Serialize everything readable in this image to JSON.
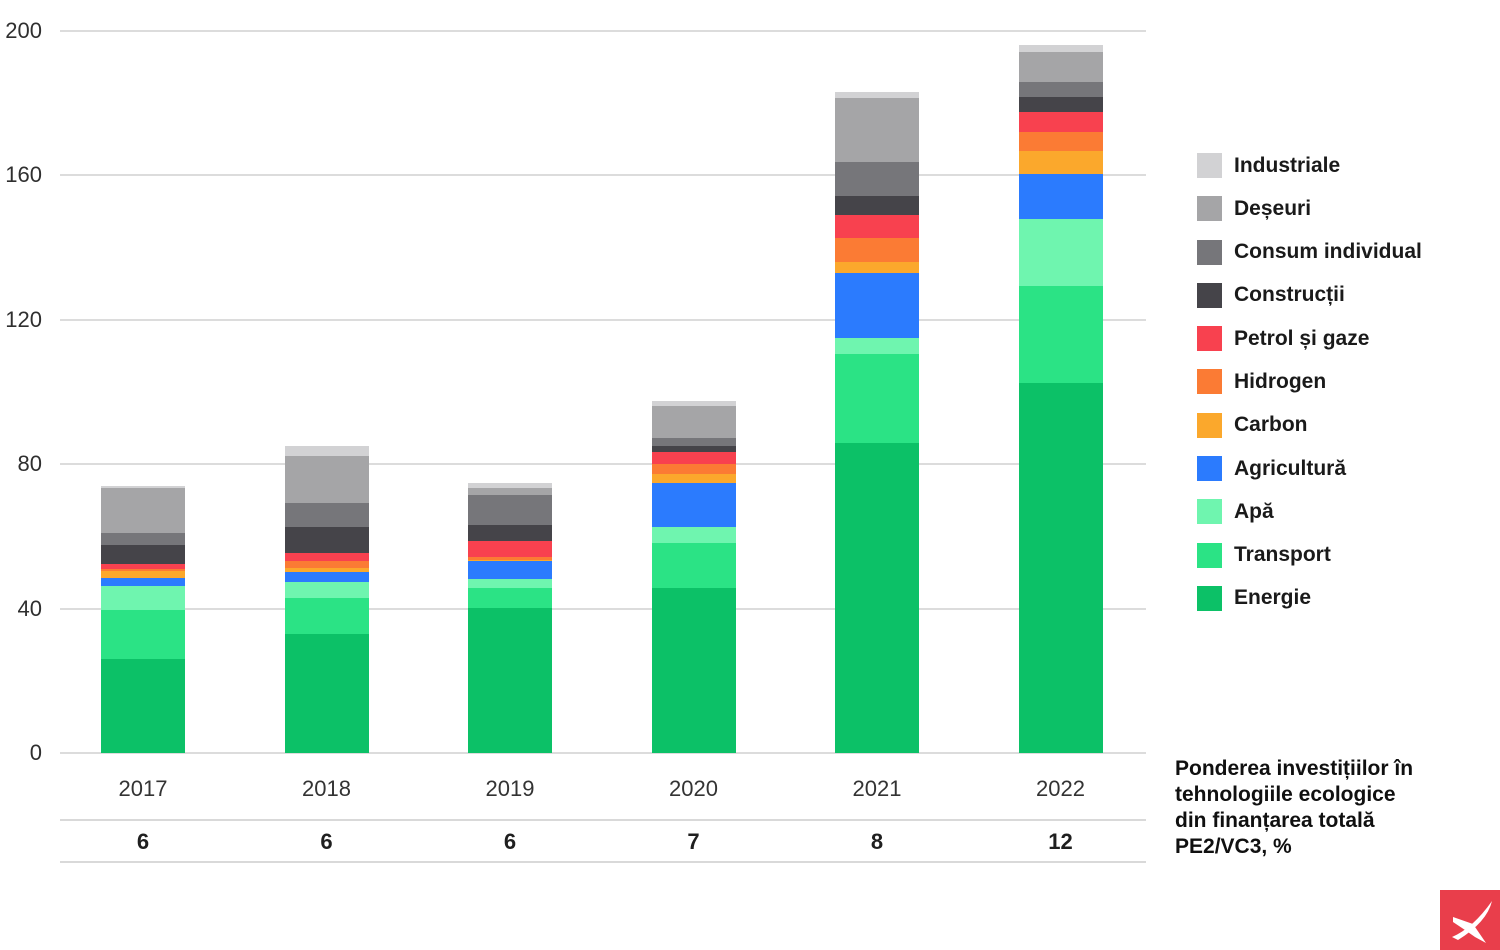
{
  "chart_data": {
    "type": "bar",
    "stacked": true,
    "title": "",
    "xlabel": "",
    "ylabel": "",
    "ylim": [
      0,
      200
    ],
    "yticks": [
      0,
      40,
      80,
      120,
      160,
      200
    ],
    "grid": true,
    "legend_position": "right",
    "categories": [
      "2017",
      "2018",
      "2019",
      "2020",
      "2021",
      "2022"
    ],
    "series_order_note": "series listed bottom-to-top of the stack; legend displays them top-to-bottom reversed",
    "series": [
      {
        "name": "Energie",
        "color": "#0cc167",
        "values": [
          26,
          33,
          40.2,
          45.8,
          85.8,
          102.4
        ]
      },
      {
        "name": "Transport",
        "color": "#2be385",
        "values": [
          13.5,
          9.9,
          5.4,
          12.3,
          24.7,
          27.1
        ]
      },
      {
        "name": "Apă",
        "color": "#6ff5af",
        "values": [
          6.8,
          4.4,
          2.7,
          4.6,
          4.6,
          18.4
        ]
      },
      {
        "name": "Agricultură",
        "color": "#2b7bfe",
        "values": [
          2.1,
          2.9,
          4.8,
          12,
          17.8,
          12.5
        ]
      },
      {
        "name": "Carbon",
        "color": "#fba82c",
        "values": [
          1.9,
          1.1,
          0.3,
          2.6,
          3,
          6.5
        ]
      },
      {
        "name": "Hidrogen",
        "color": "#fb7b34",
        "values": [
          0.6,
          1.8,
          0.9,
          2.8,
          6.9,
          5.1
        ]
      },
      {
        "name": "Petrol și gaze",
        "color": "#f8414f",
        "values": [
          1.4,
          2.3,
          4.4,
          3.2,
          6.2,
          5.5
        ]
      },
      {
        "name": "Construcții",
        "color": "#454449",
        "values": [
          5.4,
          7.1,
          4.6,
          1.8,
          5.3,
          4.2
        ]
      },
      {
        "name": "Consum individual",
        "color": "#76767a",
        "values": [
          3.2,
          6.8,
          8.1,
          2.2,
          9.3,
          4.2
        ]
      },
      {
        "name": "Deșeuri",
        "color": "#a5a5a7",
        "values": [
          12.5,
          13,
          2,
          8.8,
          17.8,
          8.3
        ]
      },
      {
        "name": "Industriale",
        "color": "#d2d2d4",
        "values": [
          0.5,
          2.7,
          1.4,
          1.5,
          1.7,
          1.9
        ]
      }
    ]
  },
  "footer_table": {
    "values": [
      "6",
      "6",
      "6",
      "7",
      "8",
      "12"
    ],
    "label_lines": [
      "Ponderea investițiilor în",
      "tehnologiile ecologice",
      "din finanțarea totală",
      "PE2/VC3, %"
    ]
  },
  "colors": {
    "grid": "#dcdcdc",
    "table_line": "#d9d9d9",
    "axis_text": "#2f2f2f",
    "legend_text": "#1a1a1a",
    "logo_red": "#e93e4b",
    "logo_glyph": "#ffffff"
  }
}
